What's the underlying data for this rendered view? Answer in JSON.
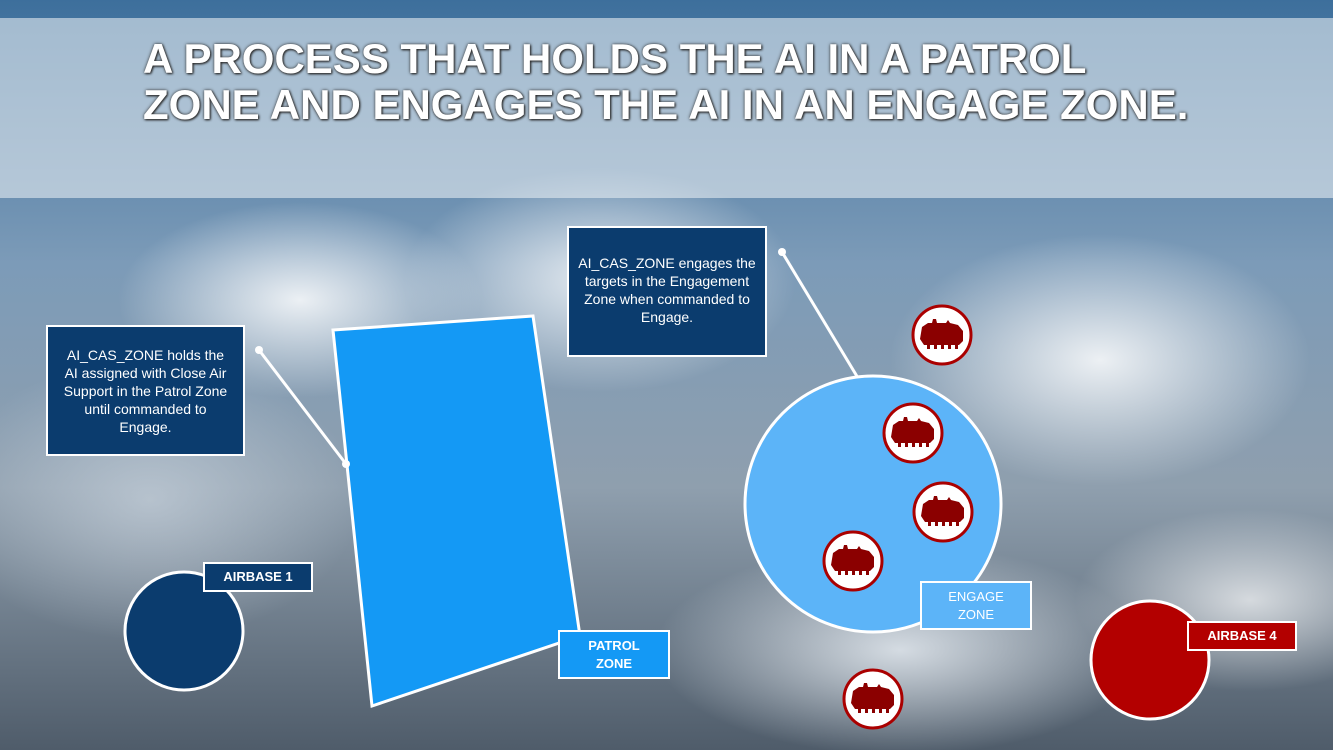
{
  "title": "A process that holds the AI in a Patrol Zone and engages the AI in an Engage Zone.",
  "callouts": {
    "patrol": "AI_CAS_ZONE holds the AI assigned with Close Air Support in the Patrol Zone until commanded to Engage.",
    "engage": "AI_CAS_ZONE engages the targets in the Engagement Zone when commanded to Engage."
  },
  "labels": {
    "airbase1": "AIRBASE 1",
    "airbase4": "AIRBASE 4",
    "patrol_zone": "PATROL ZONE",
    "engage_zone": "ENGAGE ZONE"
  },
  "colors": {
    "patrol_zone": "#1499f5",
    "engage_zone": "#5cb4f8",
    "airbase1": "#0b3c6e",
    "airbase4": "#b30000",
    "target": "#8b0000",
    "callout": "#0b3c6e"
  },
  "icons": {
    "target": "tank-icon"
  }
}
